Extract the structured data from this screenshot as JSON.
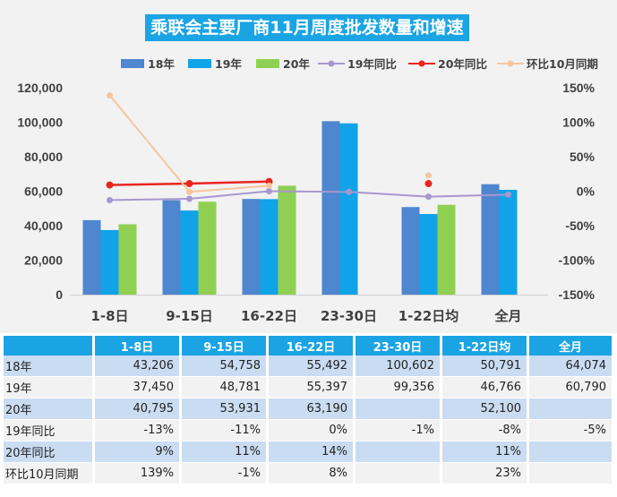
{
  "chart_data": {
    "type": "bar",
    "title": "乘联会主要厂商11月周度批发数量和增速",
    "categories": [
      "1-8日",
      "9-15日",
      "16-22日",
      "23-30日",
      "1-22日均",
      "全月"
    ],
    "series": [
      {
        "name": "18年",
        "kind": "bar",
        "axis": "left",
        "values": [
          43206,
          54758,
          55492,
          100602,
          50791,
          64074
        ]
      },
      {
        "name": "19年",
        "kind": "bar",
        "axis": "left",
        "values": [
          37450,
          48781,
          55397,
          99356,
          46766,
          60790
        ]
      },
      {
        "name": "20年",
        "kind": "bar",
        "axis": "left",
        "values": [
          40795,
          53931,
          63190,
          null,
          52100,
          null
        ]
      },
      {
        "name": "19年同比",
        "kind": "line",
        "axis": "right",
        "values": [
          -13,
          -11,
          0,
          -1,
          -8,
          -5
        ]
      },
      {
        "name": "20年同比",
        "kind": "line",
        "axis": "right",
        "values": [
          9,
          11,
          14,
          null,
          11,
          null
        ]
      },
      {
        "name": "环比10月同期",
        "kind": "line",
        "axis": "right",
        "values": [
          139,
          -1,
          8,
          null,
          23,
          null
        ]
      }
    ],
    "y_left": {
      "min": 0,
      "max": 120000,
      "ticks": [
        "0",
        "20,000",
        "40,000",
        "60,000",
        "80,000",
        "100,000",
        "120,000"
      ]
    },
    "y_right": {
      "min": -150,
      "max": 150,
      "unit": "%",
      "ticks": [
        "-150%",
        "-100%",
        "-50%",
        "0%",
        "50%",
        "100%",
        "150%"
      ]
    },
    "colors": {
      "18年": "#4e86cf",
      "19年": "#10a3e8",
      "20年": "#8fd053",
      "19年同比": "#a797cf",
      "20年同比": "#e8251f",
      "环比10月同期": "#f7c59c"
    }
  },
  "table": {
    "headers": [
      "",
      "1-8日",
      "9-15日",
      "16-22日",
      "23-30日",
      "1-22日均",
      "全月"
    ],
    "rows": [
      {
        "label": "18年",
        "cells": [
          "43,206",
          "54,758",
          "55,492",
          "100,602",
          "50,791",
          "64,074"
        ]
      },
      {
        "label": "19年",
        "cells": [
          "37,450",
          "48,781",
          "55,397",
          "99,356",
          "46,766",
          "60,790"
        ]
      },
      {
        "label": "20年",
        "cells": [
          "40,795",
          "53,931",
          "63,190",
          "",
          "52,100",
          ""
        ]
      },
      {
        "label": "19年同比",
        "cells": [
          "-13%",
          "-11%",
          "0%",
          "-1%",
          "-8%",
          "-5%"
        ]
      },
      {
        "label": "20年同比",
        "cells": [
          "9%",
          "11%",
          "14%",
          "",
          "11%",
          ""
        ]
      },
      {
        "label": "环比10月同期",
        "cells": [
          "139%",
          "-1%",
          "8%",
          "",
          "23%",
          ""
        ]
      }
    ]
  }
}
